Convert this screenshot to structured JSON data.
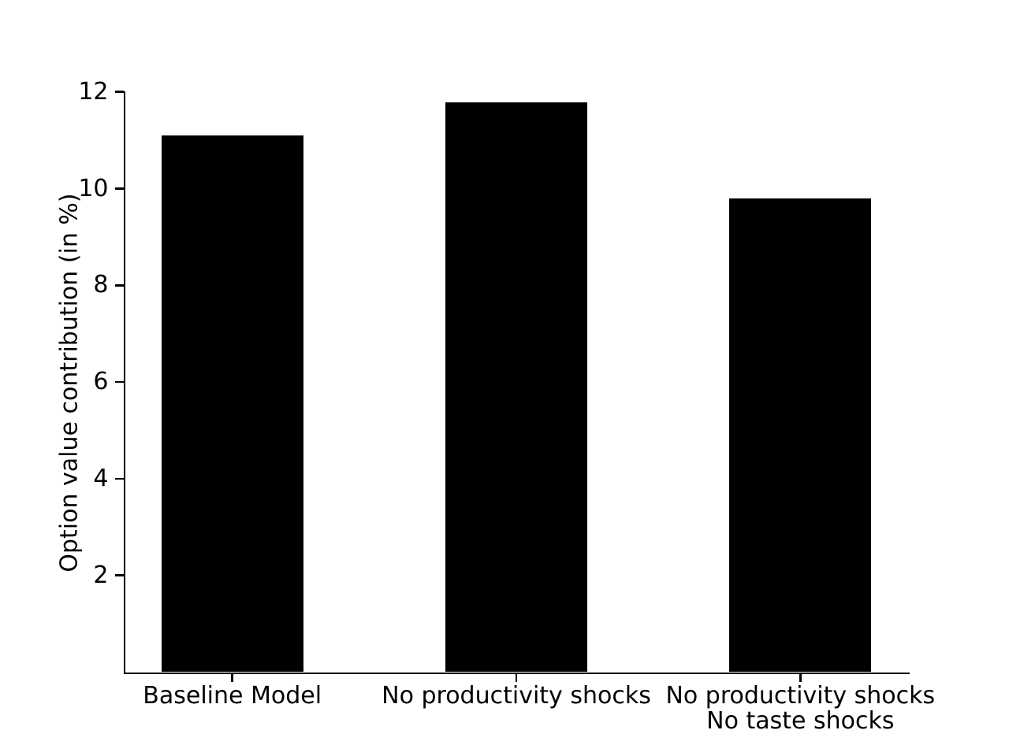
{
  "chart_data": {
    "type": "bar",
    "categories": [
      "Baseline Model",
      "No productivity shocks",
      "No productivity shocks\nNo taste shocks"
    ],
    "values": [
      11.1,
      11.78,
      9.8
    ],
    "title": "",
    "xlabel": "",
    "ylabel": "Option value contribution (in %)",
    "yticks": [
      2,
      4,
      6,
      8,
      10,
      12
    ],
    "ylim": [
      0,
      12
    ],
    "bar_color": "#000000",
    "background_color": "#ffffff",
    "grid": "off",
    "legend": "none",
    "spines": "left and bottom only"
  }
}
